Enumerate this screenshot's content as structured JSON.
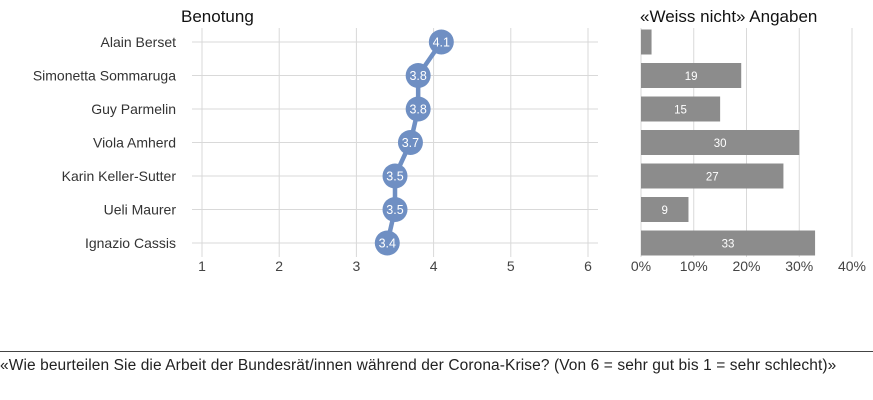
{
  "chart_data": [
    {
      "type": "scatter",
      "title": "Benotung",
      "categories": [
        "Alain Berset",
        "Simonetta Sommaruga",
        "Guy Parmelin",
        "Viola Amherd",
        "Karin Keller-Sutter",
        "Ueli Maurer",
        "Ignazio Cassis"
      ],
      "values": [
        4.1,
        3.8,
        3.8,
        3.7,
        3.5,
        3.5,
        3.4
      ],
      "value_labels": [
        "4.1",
        "3.8",
        "3.8",
        "3.7",
        "3.5",
        "3.5",
        "3.4"
      ],
      "xlim": [
        1,
        6
      ],
      "xticks": [
        "1",
        "2",
        "3",
        "4",
        "5",
        "6"
      ],
      "grid": true,
      "color": "#6f8fc3"
    },
    {
      "type": "bar",
      "title": "«Weiss nicht» Angaben",
      "categories": [
        "Alain Berset",
        "Simonetta Sommaruga",
        "Guy Parmelin",
        "Viola Amherd",
        "Karin Keller-Sutter",
        "Ueli Maurer",
        "Ignazio Cassis"
      ],
      "values": [
        2,
        19,
        15,
        30,
        27,
        9,
        33
      ],
      "value_labels": [
        "",
        "19",
        "15",
        "30",
        "27",
        "9",
        "33"
      ],
      "xlim": [
        0,
        40
      ],
      "xticks": [
        "0%",
        "10%",
        "20%",
        "30%",
        "40%"
      ],
      "grid": true,
      "color": "#8c8c8c"
    }
  ],
  "caption": "«Wie beurteilen Sie die Arbeit der Bundesrät/innen während der Corona-Krise? (Von 6 = sehr gut bis 1 = sehr schlecht)»"
}
